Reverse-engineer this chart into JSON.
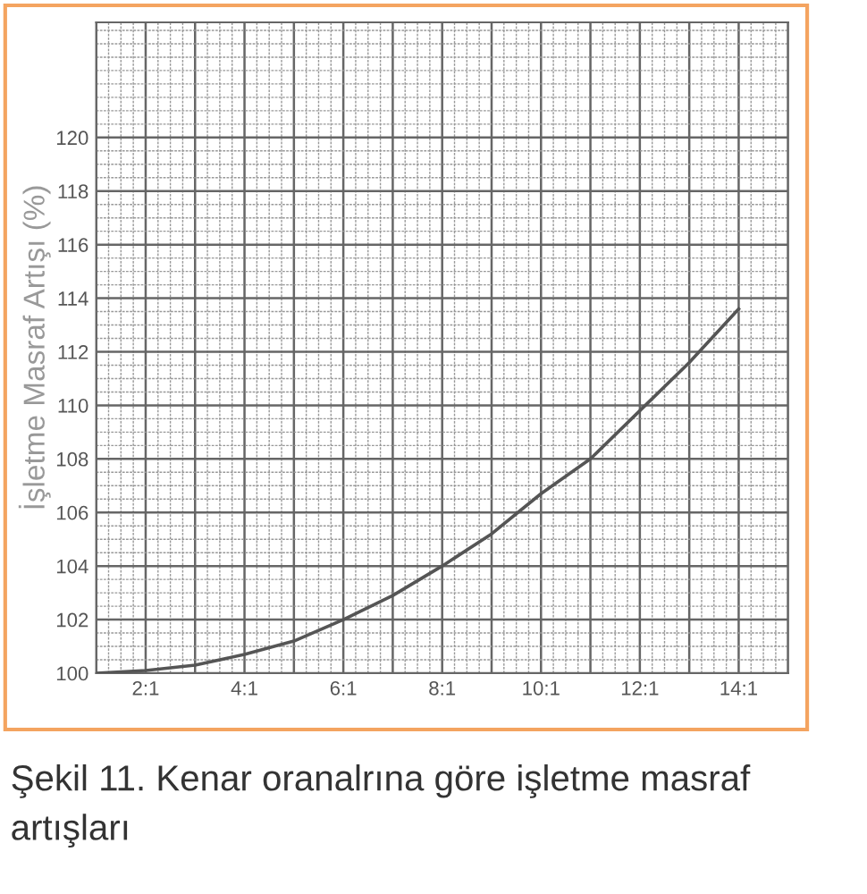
{
  "chart_data": {
    "type": "line",
    "ylabel": "İşletme Masraf Artışı (%)",
    "annotations": [
      "Şekil 11. Kenar oranalrına göre işletme masraf artışları"
    ],
    "categories": [
      null,
      "2:1",
      null,
      "4:1",
      null,
      "6:1",
      null,
      "8:1",
      null,
      "10:1",
      null,
      "12:1",
      null,
      "14:1",
      null
    ],
    "series": [
      {
        "color": "#555555",
        "values": [
          100,
          100.1,
          100.3,
          100.7,
          101.2,
          102.0,
          102.9,
          104.0,
          105.2,
          106.7,
          108.0,
          109.8,
          111.6,
          113.6,
          null
        ]
      }
    ],
    "ylim": [
      100,
      124.3
    ],
    "yticks": [
      100,
      102,
      104,
      106,
      108,
      110,
      112,
      114,
      116,
      118,
      120
    ],
    "grid": true,
    "marker": "none",
    "line_style": "solid"
  }
}
